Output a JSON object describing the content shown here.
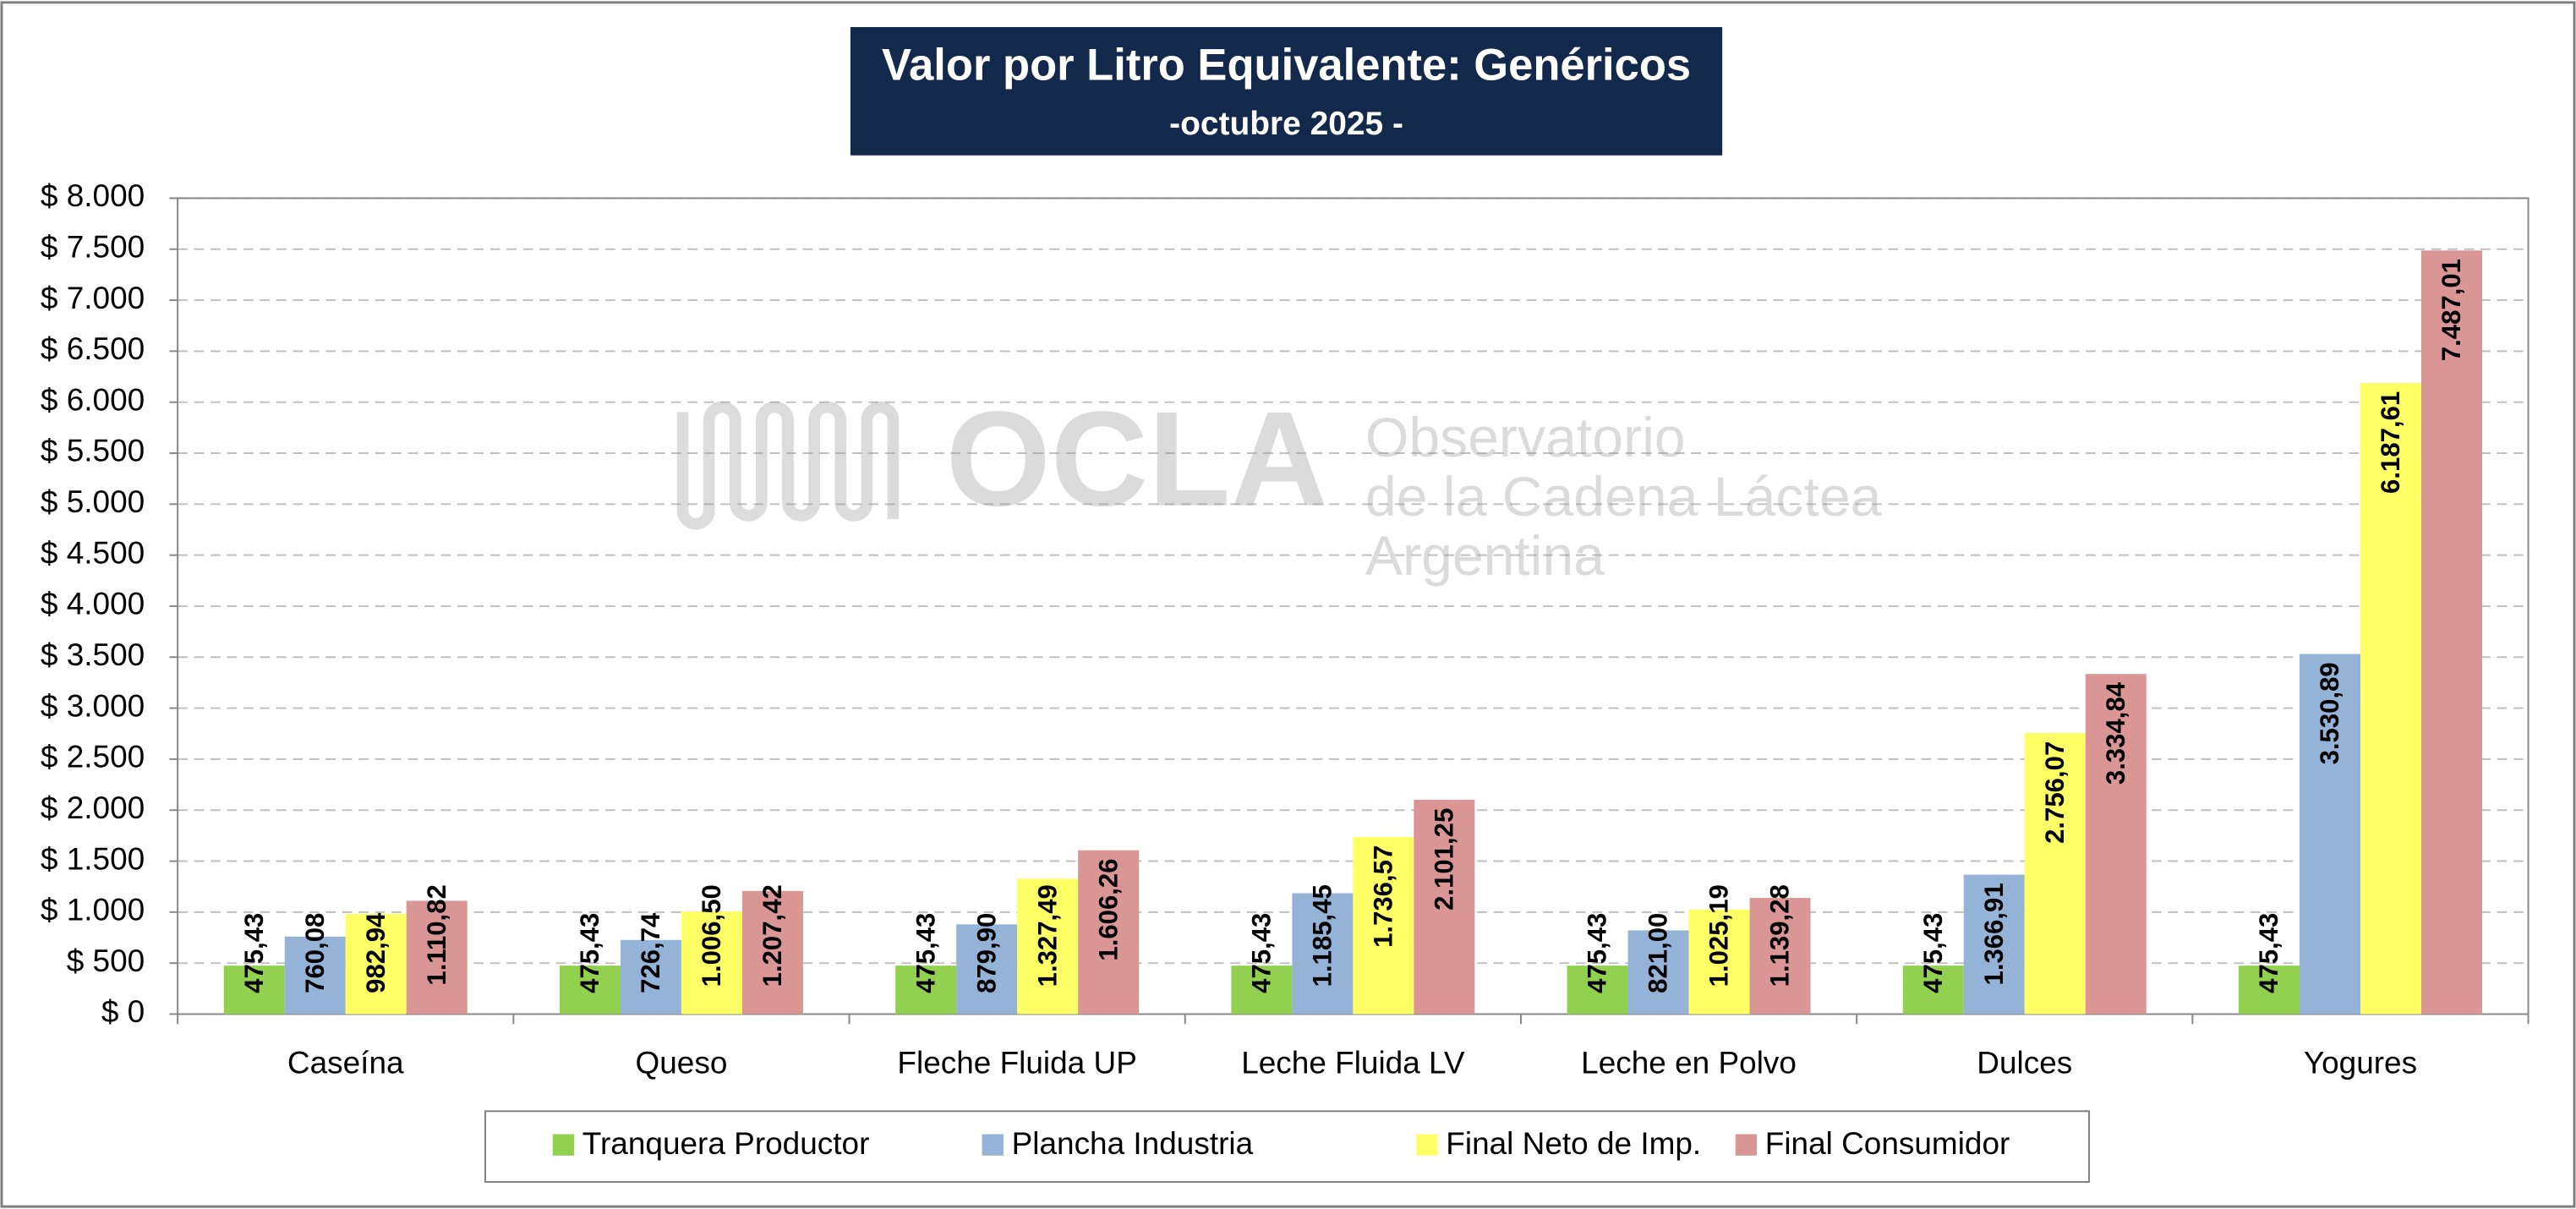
{
  "chart_data": {
    "type": "bar",
    "title": "Valor por Litro Equivalente: Genéricos",
    "subtitle": "-octubre 2025 -",
    "watermark": [
      "OCLA",
      "Observatorio",
      "de la Cadena Láctea",
      "Argentina"
    ],
    "categories": [
      "Caseína",
      "Queso",
      "Fleche Fluida UP",
      "Leche Fluida LV",
      "Leche en Polvo",
      "Dulces",
      "Yogures"
    ],
    "series": [
      {
        "name": "Tranquera Productor",
        "color": "#92d050",
        "values": [
          475.43,
          475.43,
          475.43,
          475.43,
          475.43,
          475.43,
          475.43
        ],
        "value_labels": [
          "475,43",
          "475,43",
          "475,43",
          "475,43",
          "475,43",
          "475,43",
          "475,43"
        ]
      },
      {
        "name": "Plancha Industria",
        "color": "#95b3d7",
        "values": [
          760.08,
          726.74,
          879.9,
          1185.45,
          821.0,
          1366.91,
          3530.89
        ],
        "value_labels": [
          "760,08",
          "726,74",
          "879,90",
          "1.185,45",
          "821,00",
          "1.366,91",
          "3.530,89"
        ]
      },
      {
        "name": "Final Neto de Imp.",
        "color": "#ffff66",
        "values": [
          982.94,
          1006.5,
          1327.49,
          1736.57,
          1025.19,
          2756.07,
          6187.61
        ],
        "value_labels": [
          "982,94",
          "1.006,50",
          "1.327,49",
          "1.736,57",
          "1.025,19",
          "2.756,07",
          "6.187,61"
        ]
      },
      {
        "name": "Final Consumidor",
        "color": "#d99694",
        "values": [
          1110.82,
          1207.42,
          1606.26,
          2101.25,
          1139.28,
          3334.84,
          7487.01
        ],
        "value_labels": [
          "1.110,82",
          "1.207,42",
          "1.606,26",
          "2.101,25",
          "1.139,28",
          "3.334,84",
          "7.487,01"
        ]
      }
    ],
    "ylim": [
      0,
      8000
    ],
    "yticks": [
      {
        "value": 0,
        "label": "$ 0"
      },
      {
        "value": 500,
        "label": "$ 500"
      },
      {
        "value": 1000,
        "label": "$ 1.000"
      },
      {
        "value": 1500,
        "label": "$ 1.500"
      },
      {
        "value": 2000,
        "label": "$ 2.000"
      },
      {
        "value": 2500,
        "label": "$ 2.500"
      },
      {
        "value": 3000,
        "label": "$ 3.000"
      },
      {
        "value": 3500,
        "label": "$ 3.500"
      },
      {
        "value": 4000,
        "label": "$ 4.000"
      },
      {
        "value": 4500,
        "label": "$ 4.500"
      },
      {
        "value": 5000,
        "label": "$ 5.000"
      },
      {
        "value": 5500,
        "label": "$ 5.500"
      },
      {
        "value": 6000,
        "label": "$ 6.000"
      },
      {
        "value": 6500,
        "label": "$ 6.500"
      },
      {
        "value": 7000,
        "label": "$ 7.000"
      },
      {
        "value": 7500,
        "label": "$ 7.500"
      },
      {
        "value": 8000,
        "label": "$ 8.000"
      }
    ],
    "grid": true,
    "legend": "bottom"
  }
}
